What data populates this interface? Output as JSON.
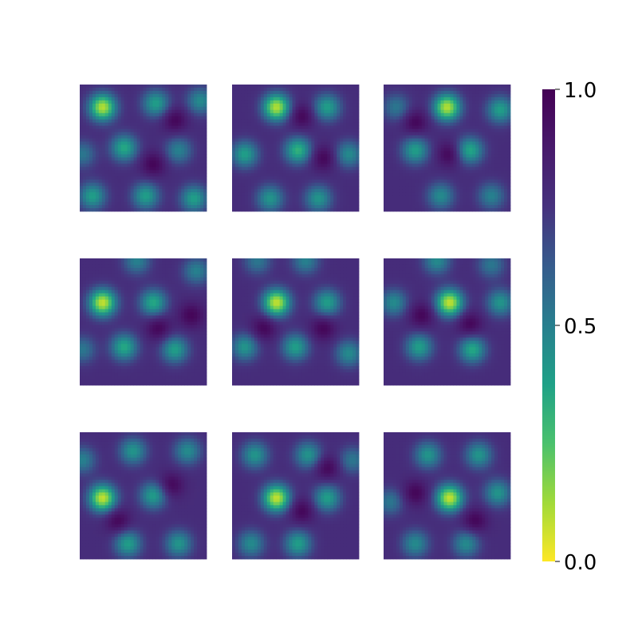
{
  "chart_data": {
    "type": "heatmap",
    "title": "",
    "layout": {
      "rows": 3,
      "cols": 3
    },
    "colormap": "viridis_reversed",
    "colorbar": {
      "vmin": 0.0,
      "vmax": 1.0,
      "ticks": [
        0.0,
        0.5,
        1.0
      ],
      "tick_labels": [
        "0.0",
        "0.5",
        "1.0"
      ],
      "placement": "right"
    },
    "panels": [
      {
        "name": "panel-1",
        "peaks": [
          [
            0.18,
            0.18,
            0.95
          ],
          [
            0.6,
            0.15,
            0.55
          ],
          [
            0.95,
            0.13,
            0.45
          ],
          [
            0.35,
            0.5,
            0.6
          ],
          [
            0.78,
            0.52,
            0.4
          ],
          [
            0.1,
            0.88,
            0.55
          ],
          [
            0.52,
            0.88,
            0.55
          ],
          [
            0.9,
            0.9,
            0.55
          ],
          [
            0.02,
            0.55,
            0.35
          ]
        ],
        "dark": [
          [
            0.58,
            0.63
          ],
          [
            0.75,
            0.28
          ]
        ]
      },
      {
        "name": "panel-2",
        "peaks": [
          [
            0.35,
            0.18,
            0.95
          ],
          [
            0.75,
            0.18,
            0.55
          ],
          [
            0.52,
            0.52,
            0.65
          ],
          [
            0.1,
            0.55,
            0.55
          ],
          [
            0.92,
            0.55,
            0.45
          ],
          [
            0.3,
            0.9,
            0.5
          ],
          [
            0.68,
            0.9,
            0.5
          ]
        ],
        "dark": [
          [
            0.55,
            0.25
          ],
          [
            0.72,
            0.58
          ]
        ]
      },
      {
        "name": "panel-3",
        "peaks": [
          [
            0.5,
            0.18,
            0.95
          ],
          [
            0.92,
            0.2,
            0.55
          ],
          [
            0.25,
            0.52,
            0.55
          ],
          [
            0.68,
            0.52,
            0.6
          ],
          [
            0.45,
            0.88,
            0.45
          ],
          [
            0.85,
            0.88,
            0.4
          ],
          [
            0.1,
            0.18,
            0.35
          ]
        ],
        "dark": [
          [
            0.52,
            0.55
          ],
          [
            0.25,
            0.3
          ]
        ]
      },
      {
        "name": "panel-4",
        "peaks": [
          [
            0.18,
            0.35,
            0.98
          ],
          [
            0.58,
            0.35,
            0.6
          ],
          [
            0.35,
            0.7,
            0.6
          ],
          [
            0.75,
            0.72,
            0.55
          ],
          [
            0.45,
            0.02,
            0.4
          ],
          [
            0.92,
            0.1,
            0.4
          ],
          [
            0.02,
            0.72,
            0.35
          ]
        ],
        "dark": [
          [
            0.62,
            0.55
          ],
          [
            0.88,
            0.45
          ]
        ]
      },
      {
        "name": "panel-5",
        "peaks": [
          [
            0.35,
            0.35,
            0.98
          ],
          [
            0.75,
            0.35,
            0.55
          ],
          [
            0.5,
            0.7,
            0.55
          ],
          [
            0.1,
            0.7,
            0.5
          ],
          [
            0.92,
            0.75,
            0.45
          ],
          [
            0.58,
            0.02,
            0.4
          ],
          [
            0.2,
            0.02,
            0.35
          ]
        ],
        "dark": [
          [
            0.72,
            0.55
          ],
          [
            0.25,
            0.55
          ]
        ]
      },
      {
        "name": "panel-6",
        "peaks": [
          [
            0.52,
            0.35,
            0.98
          ],
          [
            0.92,
            0.35,
            0.5
          ],
          [
            0.28,
            0.7,
            0.55
          ],
          [
            0.7,
            0.72,
            0.6
          ],
          [
            0.08,
            0.35,
            0.45
          ],
          [
            0.42,
            0.02,
            0.45
          ],
          [
            0.85,
            0.05,
            0.35
          ]
        ],
        "dark": [
          [
            0.68,
            0.52
          ],
          [
            0.3,
            0.45
          ]
        ]
      },
      {
        "name": "panel-7",
        "peaks": [
          [
            0.18,
            0.52,
            0.98
          ],
          [
            0.58,
            0.5,
            0.55
          ],
          [
            0.38,
            0.88,
            0.55
          ],
          [
            0.78,
            0.88,
            0.5
          ],
          [
            0.42,
            0.15,
            0.5
          ],
          [
            0.85,
            0.15,
            0.45
          ],
          [
            0.02,
            0.22,
            0.4
          ]
        ],
        "dark": [
          [
            0.72,
            0.42
          ],
          [
            0.3,
            0.7
          ]
        ]
      },
      {
        "name": "panel-8",
        "peaks": [
          [
            0.35,
            0.52,
            0.98
          ],
          [
            0.75,
            0.52,
            0.55
          ],
          [
            0.52,
            0.88,
            0.55
          ],
          [
            0.15,
            0.88,
            0.45
          ],
          [
            0.18,
            0.18,
            0.5
          ],
          [
            0.6,
            0.18,
            0.5
          ],
          [
            0.95,
            0.22,
            0.35
          ]
        ],
        "dark": [
          [
            0.55,
            0.62
          ],
          [
            0.75,
            0.28
          ]
        ]
      },
      {
        "name": "panel-9",
        "peaks": [
          [
            0.52,
            0.52,
            0.98
          ],
          [
            0.9,
            0.48,
            0.5
          ],
          [
            0.35,
            0.18,
            0.5
          ],
          [
            0.75,
            0.18,
            0.5
          ],
          [
            0.25,
            0.88,
            0.45
          ],
          [
            0.65,
            0.88,
            0.45
          ],
          [
            0.05,
            0.55,
            0.35
          ]
        ],
        "dark": [
          [
            0.72,
            0.7
          ],
          [
            0.25,
            0.48
          ]
        ]
      }
    ]
  }
}
